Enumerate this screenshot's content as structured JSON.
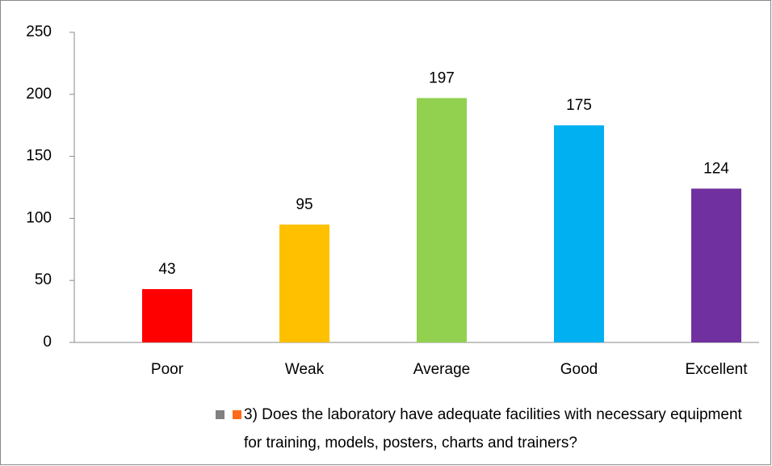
{
  "chart_data": {
    "type": "bar",
    "categories": [
      "Poor",
      "Weak",
      "Average",
      "Good",
      "Excellent"
    ],
    "series": [
      {
        "name": "3) Does the laboratory have adequate facilities with necessary equipment for training, models, posters, charts and trainers?",
        "colors": [
          "#ff0000",
          "#ffc000",
          "#92d050",
          "#00b0f0",
          "#7030a0"
        ],
        "legend_marker_colors": [
          "#808080",
          "#ff6a1a"
        ],
        "values": [
          43,
          95,
          197,
          175,
          124
        ]
      }
    ],
    "ylim": [
      0,
      250
    ],
    "yticks": [
      0,
      50,
      100,
      150,
      200,
      250
    ],
    "grid": false,
    "data_labels": true,
    "legend": "bottom"
  }
}
